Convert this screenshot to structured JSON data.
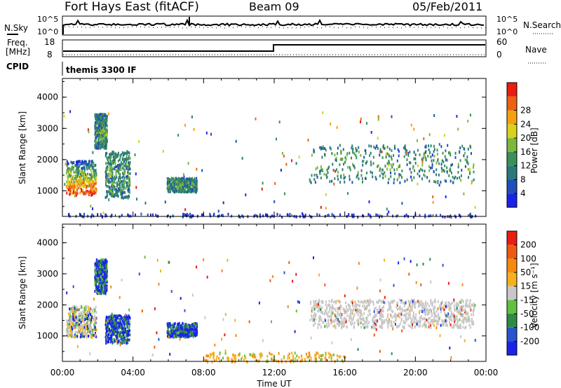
{
  "header": {
    "station": "Fort Hays East (fitACF)",
    "beam": "Beam 09",
    "date": "05/Feb/2011"
  },
  "strips": {
    "nsky": {
      "label": "N.Sky",
      "ticks": [
        "10^5",
        "10^0"
      ]
    },
    "nsearch": {
      "label": "N.Search",
      "ticks": [
        "10^5",
        "10^0"
      ]
    },
    "freq": {
      "label_line1": "Freq.",
      "label_line2": "[MHz]",
      "ticks": [
        "18",
        "8"
      ]
    },
    "nave": {
      "label": "Nave",
      "ticks": [
        "60",
        "0"
      ]
    },
    "cpid": {
      "label": "CPID",
      "value": "themis 3300 IF"
    }
  },
  "chart_data": [
    {
      "type": "heatmap",
      "name": "power",
      "ylabel": "Slant Range [km]",
      "xlabel": "",
      "ylim": [
        180,
        4600
      ],
      "xlim": [
        0,
        24
      ],
      "yticks": [
        "1000",
        "2000",
        "3000",
        "4000"
      ],
      "colorbar": {
        "label": "Power [dB]",
        "ticks": [
          "4",
          "8",
          "12",
          "16",
          "20",
          "24",
          "28"
        ],
        "colors": [
          "#1a24e8",
          "#1f4fb8",
          "#2a7a7a",
          "#3c8f5a",
          "#7cb83a",
          "#d9d21a",
          "#f5a010",
          "#f06010",
          "#e81e10"
        ]
      },
      "echo_regions": [
        {
          "t": [
            0.2,
            1.9
          ],
          "r": [
            900,
            2000
          ],
          "level": "high"
        },
        {
          "t": [
            1.8,
            2.5
          ],
          "r": [
            2400,
            3500
          ],
          "level": "medium"
        },
        {
          "t": [
            2.4,
            3.8
          ],
          "r": [
            800,
            2300
          ],
          "level": "medium"
        },
        {
          "t": [
            5.9,
            7.6
          ],
          "r": [
            1000,
            1450
          ],
          "level": "medium"
        },
        {
          "t": [
            14.0,
            23.3
          ],
          "r": [
            1300,
            2500
          ],
          "level": "medium"
        },
        {
          "t": [
            0.2,
            23.5
          ],
          "r": [
            200,
            300
          ],
          "level": "low"
        }
      ]
    },
    {
      "type": "heatmap",
      "name": "velocity",
      "ylabel": "Slant Range [km]",
      "xlabel": "Time UT",
      "ylim": [
        180,
        4600
      ],
      "xlim": [
        0,
        24
      ],
      "yticks": [
        "1000",
        "2000",
        "3000",
        "4000"
      ],
      "xticks": [
        "00:00",
        "04:00",
        "08:00",
        "12:00",
        "16:00",
        "20:00",
        "00:00"
      ],
      "colorbar": {
        "label": "Velocity [m s⁻¹]",
        "ticks": [
          "200",
          "100",
          "50",
          "15",
          "-15",
          "-50",
          "-100",
          "-200"
        ],
        "colors": [
          "#1a24e8",
          "#2a54d0",
          "#2f8a48",
          "#60c040",
          "#c8c8c8",
          "#f5b020",
          "#f58a10",
          "#f05a10",
          "#e81e10"
        ]
      },
      "echo_regions": [
        {
          "t": [
            0.2,
            1.9
          ],
          "r": [
            1000,
            2000
          ],
          "level": "mixed"
        },
        {
          "t": [
            1.8,
            2.5
          ],
          "r": [
            2400,
            3500
          ],
          "level": "toward"
        },
        {
          "t": [
            2.4,
            3.8
          ],
          "r": [
            800,
            1700
          ],
          "level": "toward"
        },
        {
          "t": [
            5.9,
            7.6
          ],
          "r": [
            1000,
            1450
          ],
          "level": "toward"
        },
        {
          "t": [
            14.0,
            23.3
          ],
          "r": [
            1300,
            2200
          ],
          "level": "ground"
        },
        {
          "t": [
            8.0,
            16.0
          ],
          "r": [
            200,
            500
          ],
          "level": "away"
        }
      ]
    }
  ]
}
